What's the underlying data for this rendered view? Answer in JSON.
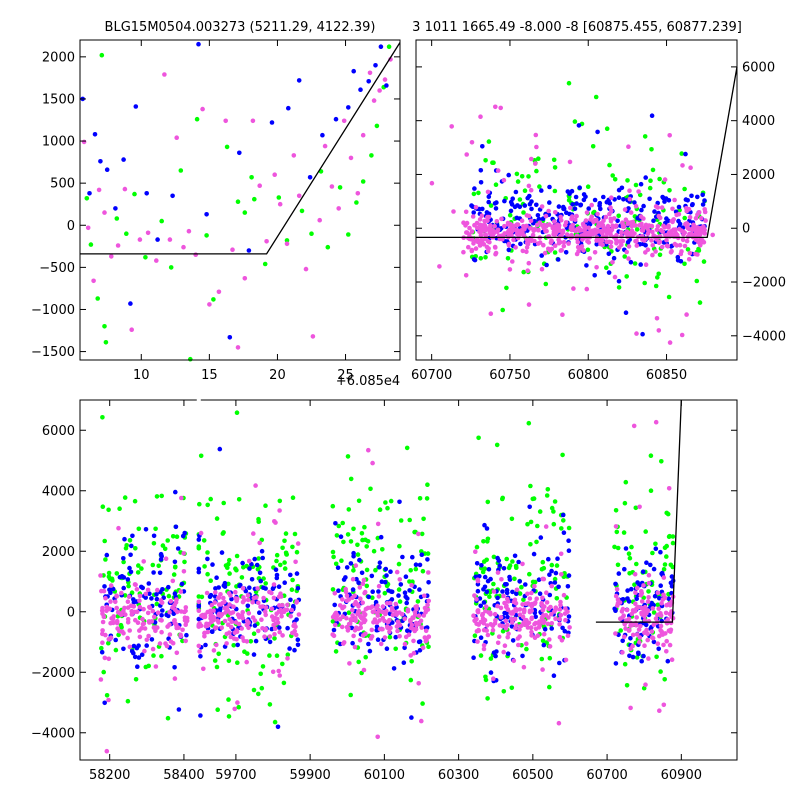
{
  "figure": {
    "title_left": "BLG15M0504.003273 (5211.29, 4122.39)",
    "title_right": "3 1011 1665.49 -8.000 -8 [60875.455, 60877.239]",
    "offset_label": "+6.085e4"
  },
  "colors": {
    "green": "#00ff00",
    "blue": "#0000ff",
    "magenta": "#ee55dd",
    "model_line": "#000000"
  },
  "chart_data": [
    {
      "id": "top-left",
      "type": "scatter",
      "title": "BLG15M0504.003273 (5211.29, 4122.39)",
      "xlim": [
        5.5,
        29
      ],
      "ylim": [
        -1600,
        2200
      ],
      "x_offset_label": "+6.085e4",
      "x_ticks": [
        10,
        15,
        20,
        25
      ],
      "x_tick_labels": [
        "10",
        "15",
        "20",
        "25"
      ],
      "y_ticks": [
        -1500,
        -1000,
        -500,
        0,
        500,
        1000,
        1500,
        2000
      ],
      "y_tick_labels": [
        "−1500",
        "−1000",
        "−500",
        "0",
        "500",
        "1000",
        "1500",
        "2000"
      ],
      "y_axis_side": "left",
      "model_line": {
        "x": [
          5.5,
          19.2,
          29
        ],
        "y": [
          -340,
          -340,
          2170
        ]
      },
      "series": [
        {
          "color": "green",
          "points": [
            [
              6,
              320
            ],
            [
              6.3,
              -230
            ],
            [
              6.8,
              -870
            ],
            [
              7.1,
              2020
            ],
            [
              7.3,
              -1200
            ],
            [
              7.4,
              -1390
            ],
            [
              8.2,
              80
            ],
            [
              8.9,
              -100
            ],
            [
              9.5,
              370
            ],
            [
              10.3,
              -380
            ],
            [
              11.5,
              50
            ],
            [
              12.2,
              -500
            ],
            [
              12.9,
              650
            ],
            [
              13.6,
              -1590
            ],
            [
              14.1,
              1260
            ],
            [
              14.8,
              -120
            ],
            [
              15.3,
              -880
            ],
            [
              16.3,
              930
            ],
            [
              17.1,
              280
            ],
            [
              17.6,
              150
            ],
            [
              18.1,
              570
            ],
            [
              18.3,
              310
            ],
            [
              19.1,
              -460
            ],
            [
              20.1,
              330
            ],
            [
              20.7,
              -180
            ],
            [
              21.8,
              170
            ],
            [
              22.5,
              -100
            ],
            [
              23.2,
              640
            ],
            [
              23.7,
              -260
            ],
            [
              24.6,
              450
            ],
            [
              25.2,
              -110
            ],
            [
              25.8,
              270
            ],
            [
              26.3,
              520
            ],
            [
              26.9,
              830
            ],
            [
              27.3,
              1180
            ],
            [
              27.8,
              1640
            ],
            [
              28.2,
              2120
            ]
          ]
        },
        {
          "color": "blue",
          "points": [
            [
              5.7,
              1500
            ],
            [
              6.2,
              380
            ],
            [
              6.6,
              1080
            ],
            [
              7,
              760
            ],
            [
              7.5,
              660
            ],
            [
              8.1,
              200
            ],
            [
              8.7,
              780
            ],
            [
              9.2,
              -930
            ],
            [
              9.6,
              1410
            ],
            [
              10.4,
              380
            ],
            [
              11.2,
              -170
            ],
            [
              12.3,
              350
            ],
            [
              14.2,
              2150
            ],
            [
              14.8,
              130
            ],
            [
              16.5,
              -1330
            ],
            [
              17.2,
              860
            ],
            [
              17.9,
              -300
            ],
            [
              19.6,
              1220
            ],
            [
              20.8,
              1390
            ],
            [
              21.6,
              1720
            ],
            [
              22.4,
              570
            ],
            [
              23.3,
              1070
            ],
            [
              24.3,
              1260
            ],
            [
              25.2,
              1400
            ],
            [
              25.6,
              1830
            ],
            [
              26.1,
              1610
            ],
            [
              26.7,
              1710
            ],
            [
              27.2,
              1900
            ],
            [
              27.6,
              2120
            ],
            [
              28,
              1660
            ]
          ]
        },
        {
          "color": "magenta",
          "points": [
            [
              5.8,
              990
            ],
            [
              6.1,
              -30
            ],
            [
              6.5,
              -660
            ],
            [
              6.9,
              420
            ],
            [
              7.3,
              150
            ],
            [
              7.8,
              -370
            ],
            [
              8.3,
              -240
            ],
            [
              8.8,
              430
            ],
            [
              9.3,
              -1240
            ],
            [
              9.9,
              -170
            ],
            [
              10.5,
              -90
            ],
            [
              11.1,
              -420
            ],
            [
              11.7,
              1790
            ],
            [
              12.1,
              -170
            ],
            [
              12.6,
              1040
            ],
            [
              13.1,
              -260
            ],
            [
              13.5,
              -70
            ],
            [
              14,
              -350
            ],
            [
              14.5,
              1380
            ],
            [
              15,
              -940
            ],
            [
              15.7,
              -790
            ],
            [
              16.2,
              1240
            ],
            [
              16.7,
              -290
            ],
            [
              17.1,
              -1450
            ],
            [
              17.6,
              -630
            ],
            [
              18.2,
              1240
            ],
            [
              18.7,
              470
            ],
            [
              19.2,
              -190
            ],
            [
              19.8,
              600
            ],
            [
              20.2,
              250
            ],
            [
              20.7,
              -220
            ],
            [
              21.2,
              830
            ],
            [
              21.6,
              350
            ],
            [
              22.1,
              -520
            ],
            [
              22.6,
              -1320
            ],
            [
              23.1,
              60
            ],
            [
              23.5,
              940
            ],
            [
              24,
              460
            ],
            [
              24.5,
              200
            ],
            [
              24.9,
              1240
            ],
            [
              25.4,
              800
            ],
            [
              25.9,
              380
            ],
            [
              26.3,
              1070
            ],
            [
              26.8,
              1810
            ],
            [
              27.1,
              1480
            ],
            [
              27.5,
              1600
            ],
            [
              27.9,
              1730
            ],
            [
              28.3,
              1970
            ]
          ]
        }
      ]
    },
    {
      "id": "top-right",
      "type": "scatter",
      "xlim": [
        60690,
        60895
      ],
      "ylim": [
        -4900,
        7000
      ],
      "x_ticks": [
        60700,
        60750,
        60800,
        60850
      ],
      "x_tick_labels": [
        "60700",
        "60750",
        "60800",
        "60850"
      ],
      "y_ticks": [
        -4000,
        -2000,
        0,
        2000,
        4000,
        6000
      ],
      "y_tick_labels": [
        "−4000",
        "−2000",
        "0",
        "2000",
        "4000",
        "6000"
      ],
      "y_axis_side": "right",
      "model_line": {
        "x": [
          60690,
          60876,
          60895
        ],
        "y": [
          -340,
          -340,
          6000
        ]
      },
      "clusters": [
        {
          "x_range": [
            60720,
            60875
          ],
          "y_center": -200,
          "spread": 380,
          "color": "magenta",
          "count": 520
        },
        {
          "x_range": [
            60725,
            60875
          ],
          "y_center": 200,
          "spread": 650,
          "color": "blue",
          "count": 300
        },
        {
          "x_range": [
            60725,
            60875
          ],
          "y_center": 400,
          "spread": 1400,
          "color": "green",
          "count": 160
        },
        {
          "x_range": [
            60700,
            60880
          ],
          "y_center": 0,
          "spread": 2800,
          "color": "magenta",
          "count": 60
        }
      ]
    },
    {
      "id": "bottom",
      "type": "scatter",
      "xlim": [
        58120,
        61050
      ],
      "ylim": [
        -4900,
        7000
      ],
      "x_breaks": [
        [
          58440,
          59600
        ]
      ],
      "x_ticks": [
        58200,
        58400,
        59700,
        59900,
        60100,
        60300,
        60500,
        60700,
        60900
      ],
      "x_tick_labels": [
        "58200",
        "58400",
        "59700",
        "59900",
        "60100",
        "60300",
        "60500",
        "60700",
        "60900"
      ],
      "y_ticks": [
        -4000,
        -2000,
        0,
        2000,
        4000,
        6000
      ],
      "y_tick_labels": [
        "−4000",
        "−2000",
        "0",
        "2000",
        "4000",
        "6000"
      ],
      "y_axis_side": "left",
      "model_line": {
        "x": [
          60670,
          60876,
          60900
        ],
        "y": [
          -340,
          -340,
          7000
        ]
      },
      "seasons": [
        {
          "x_range": [
            58175,
            58410
          ],
          "count": 340
        },
        {
          "x_range": [
            59590,
            59870
          ],
          "count": 420
        },
        {
          "x_range": [
            59960,
            60220
          ],
          "count": 420
        },
        {
          "x_range": [
            60340,
            60600
          ],
          "count": 420
        },
        {
          "x_range": [
            60720,
            60880
          ],
          "count": 300
        }
      ]
    }
  ]
}
